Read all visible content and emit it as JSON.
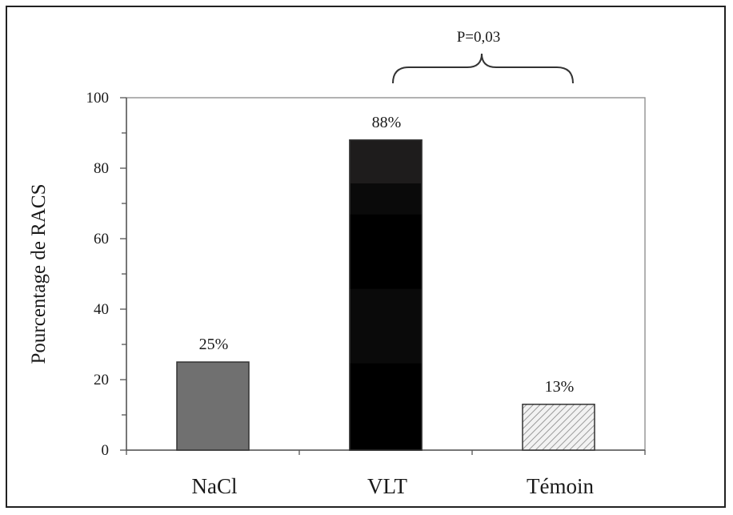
{
  "chart_data": {
    "type": "bar",
    "title": "",
    "xlabel": "",
    "ylabel": "Pourcentage de RACS",
    "ylim": [
      0,
      100
    ],
    "yticks": [
      0,
      20,
      40,
      60,
      80,
      100
    ],
    "categories": [
      "NaCl",
      "VLT",
      "Témoin"
    ],
    "values": [
      25,
      88,
      13
    ],
    "data_labels": [
      "25%",
      "88%",
      "13%"
    ],
    "bar_styles": [
      "solid-gray",
      "solid-black",
      "hatched-light"
    ],
    "colors": [
      "#707070",
      "#0a0a0a",
      "#d9d9d9"
    ],
    "annotation": {
      "text": "P=0,03",
      "between": [
        "VLT",
        "Témoin"
      ],
      "style": "curly-brace"
    },
    "grid": false,
    "legend": "none"
  }
}
